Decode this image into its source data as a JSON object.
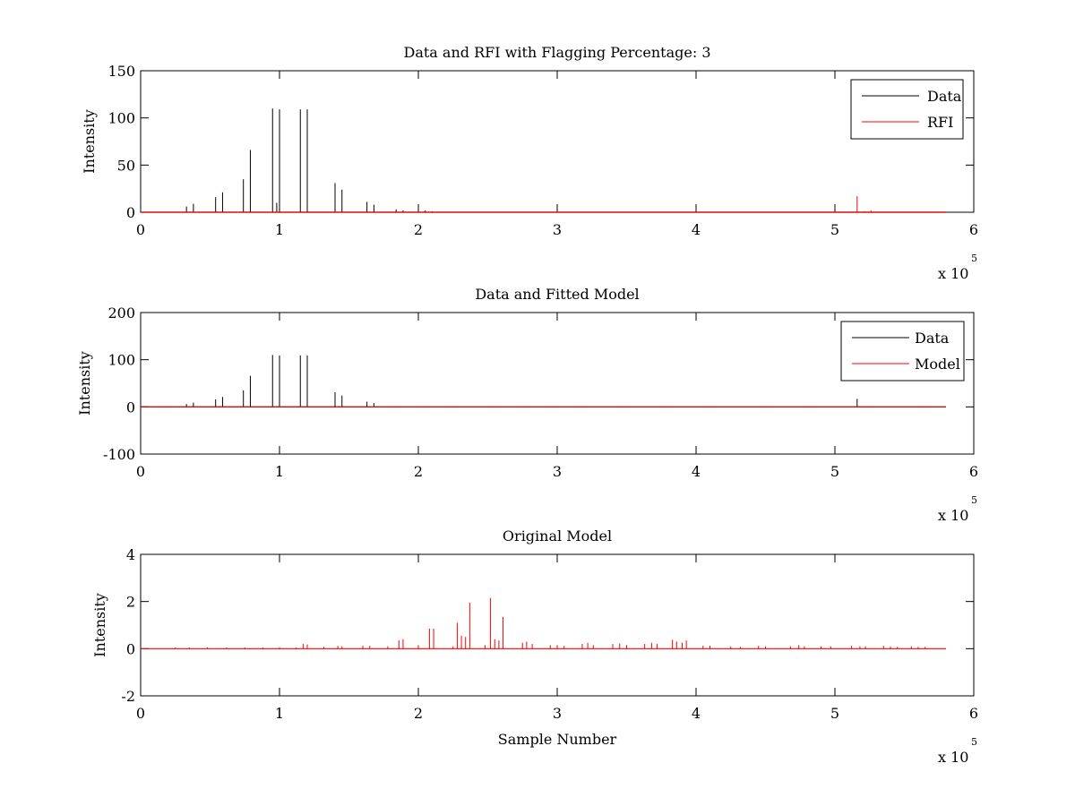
{
  "chart_data": [
    {
      "type": "line",
      "title": "Data and RFI with Flagging Percentage: 3",
      "xlabel": "",
      "ylabel": "Intensity",
      "xlim": [
        0,
        600000
      ],
      "ylim": [
        0,
        150
      ],
      "xticks": [
        "0",
        "1",
        "2",
        "3",
        "4",
        "5",
        "6"
      ],
      "xtick_values": [
        0,
        100000,
        200000,
        300000,
        400000,
        500000,
        600000
      ],
      "yticks": [
        "0",
        "50",
        "100",
        "150"
      ],
      "ytick_values": [
        0,
        50,
        100,
        150
      ],
      "x_multiplier_base": "x 10",
      "x_multiplier_exp": "5",
      "legend": {
        "position": "top-right",
        "entries": [
          "Data",
          "RFI"
        ]
      },
      "series": [
        {
          "name": "Data",
          "color": "#000000",
          "spikes": [
            [
              33000,
              6
            ],
            [
              38000,
              9
            ],
            [
              54000,
              16
            ],
            [
              59000,
              21
            ],
            [
              74000,
              35
            ],
            [
              79000,
              66
            ],
            [
              95000,
              110
            ],
            [
              98000,
              10
            ],
            [
              100000,
              109
            ],
            [
              115000,
              109
            ],
            [
              120000,
              109
            ],
            [
              140000,
              31
            ],
            [
              145000,
              24
            ],
            [
              163000,
              11
            ],
            [
              168000,
              8
            ],
            [
              184000,
              3
            ],
            [
              189000,
              2
            ],
            [
              200000,
              8
            ],
            [
              205000,
              2
            ],
            [
              210000,
              1
            ]
          ]
        },
        {
          "name": "RFI",
          "color": "#ff0000",
          "spikes": [
            [
              516000,
              17
            ],
            [
              521000,
              1
            ],
            [
              526000,
              2
            ]
          ]
        }
      ],
      "x_end": 580000
    },
    {
      "type": "line",
      "title": "Data and Fitted Model",
      "xlabel": "",
      "ylabel": "Intensity",
      "xlim": [
        0,
        600000
      ],
      "ylim": [
        -100,
        200
      ],
      "xticks": [
        "0",
        "1",
        "2",
        "3",
        "4",
        "5",
        "6"
      ],
      "xtick_values": [
        0,
        100000,
        200000,
        300000,
        400000,
        500000,
        600000
      ],
      "yticks": [
        "-100",
        "0",
        "100",
        "200"
      ],
      "ytick_values": [
        -100,
        0,
        100,
        200
      ],
      "x_multiplier_base": "x 10",
      "x_multiplier_exp": "5",
      "legend": {
        "position": "top-right",
        "entries": [
          "Data",
          "Model"
        ]
      },
      "series": [
        {
          "name": "Data",
          "color": "#000000",
          "spikes": [
            [
              33000,
              6
            ],
            [
              38000,
              9
            ],
            [
              54000,
              16
            ],
            [
              59000,
              21
            ],
            [
              74000,
              35
            ],
            [
              79000,
              66
            ],
            [
              95000,
              110
            ],
            [
              100000,
              109
            ],
            [
              115000,
              109
            ],
            [
              120000,
              109
            ],
            [
              140000,
              31
            ],
            [
              145000,
              24
            ],
            [
              163000,
              11
            ],
            [
              168000,
              8
            ],
            [
              516000,
              17
            ]
          ]
        },
        {
          "name": "Model",
          "color": "#ff0000",
          "spikes": [
            [
              22000,
              1
            ],
            [
              33000,
              1
            ],
            [
              54000,
              1
            ],
            [
              74000,
              1
            ],
            [
              95000,
              1
            ],
            [
              115000,
              2
            ],
            [
              145000,
              1
            ],
            [
              185000,
              1
            ],
            [
              208000,
              1
            ],
            [
              228000,
              1
            ],
            [
              252000,
              1
            ],
            [
              280000,
              1
            ],
            [
              300000,
              1
            ],
            [
              320000,
              1
            ],
            [
              345000,
              1
            ],
            [
              375000,
              1
            ],
            [
              410000,
              1
            ],
            [
              450000,
              1
            ],
            [
              480000,
              1
            ],
            [
              525000,
              1
            ],
            [
              560000,
              1
            ]
          ]
        }
      ],
      "x_end": 580000
    },
    {
      "type": "line",
      "title": "Original Model",
      "xlabel": "Sample Number",
      "ylabel": "Intensity",
      "xlim": [
        0,
        600000
      ],
      "ylim": [
        -2,
        4
      ],
      "xticks": [
        "0",
        "1",
        "2",
        "3",
        "4",
        "5",
        "6"
      ],
      "xtick_values": [
        0,
        100000,
        200000,
        300000,
        400000,
        500000,
        600000
      ],
      "yticks": [
        "-2",
        "0",
        "2",
        "4"
      ],
      "ytick_values": [
        -2,
        0,
        2,
        4
      ],
      "x_multiplier_base": "x 10",
      "x_multiplier_exp": "5",
      "legend": null,
      "series": [
        {
          "name": "",
          "color": "#ff0000",
          "spikes": [
            [
              25000,
              0.05
            ],
            [
              35000,
              0.05
            ],
            [
              48000,
              0.06
            ],
            [
              62000,
              0.05
            ],
            [
              75000,
              0.05
            ],
            [
              88000,
              0.05
            ],
            [
              100000,
              0.06
            ],
            [
              112000,
              0.05
            ],
            [
              117000,
              0.2
            ],
            [
              120000,
              0.18
            ],
            [
              132000,
              0.08
            ],
            [
              142000,
              0.12
            ],
            [
              145000,
              0.1
            ],
            [
              160000,
              0.12
            ],
            [
              165000,
              0.12
            ],
            [
              178000,
              0.1
            ],
            [
              186000,
              0.35
            ],
            [
              189000,
              0.4
            ],
            [
              200000,
              0.15
            ],
            [
              208000,
              0.85
            ],
            [
              211000,
              0.85
            ],
            [
              225000,
              0.1
            ],
            [
              228000,
              1.1
            ],
            [
              231000,
              0.55
            ],
            [
              234000,
              0.5
            ],
            [
              237000,
              1.95
            ],
            [
              248000,
              0.15
            ],
            [
              252000,
              2.15
            ],
            [
              255000,
              0.4
            ],
            [
              258000,
              0.35
            ],
            [
              261000,
              1.35
            ],
            [
              275000,
              0.25
            ],
            [
              278000,
              0.3
            ],
            [
              282000,
              0.2
            ],
            [
              295000,
              0.15
            ],
            [
              300000,
              0.15
            ],
            [
              305000,
              0.12
            ],
            [
              318000,
              0.2
            ],
            [
              322000,
              0.25
            ],
            [
              326000,
              0.15
            ],
            [
              340000,
              0.2
            ],
            [
              345000,
              0.22
            ],
            [
              350000,
              0.15
            ],
            [
              363000,
              0.2
            ],
            [
              368000,
              0.25
            ],
            [
              372000,
              0.2
            ],
            [
              383000,
              0.38
            ],
            [
              386000,
              0.3
            ],
            [
              390000,
              0.25
            ],
            [
              393000,
              0.35
            ],
            [
              405000,
              0.12
            ],
            [
              410000,
              0.12
            ],
            [
              425000,
              0.1
            ],
            [
              432000,
              0.08
            ],
            [
              445000,
              0.12
            ],
            [
              450000,
              0.1
            ],
            [
              468000,
              0.1
            ],
            [
              474000,
              0.15
            ],
            [
              478000,
              0.1
            ],
            [
              490000,
              0.1
            ],
            [
              497000,
              0.1
            ],
            [
              512000,
              0.12
            ],
            [
              518000,
              0.1
            ],
            [
              522000,
              0.1
            ],
            [
              535000,
              0.12
            ],
            [
              540000,
              0.1
            ],
            [
              545000,
              0.08
            ],
            [
              555000,
              0.1
            ],
            [
              560000,
              0.08
            ],
            [
              565000,
              0.08
            ]
          ]
        }
      ],
      "x_end": 580000
    }
  ]
}
